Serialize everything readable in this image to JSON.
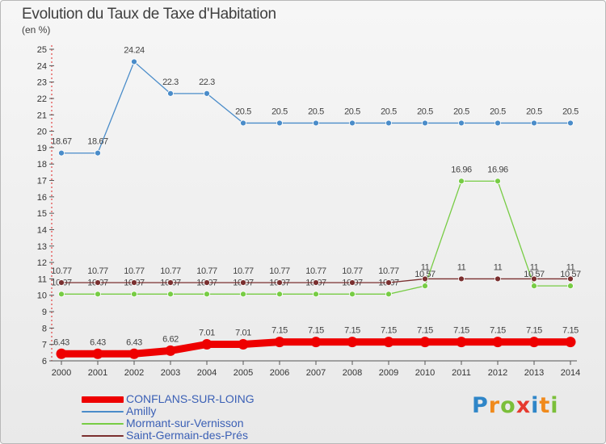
{
  "chart_data": {
    "type": "line",
    "title": "Evolution du Taux de Taxe d'Habitation",
    "subtitle": "(en %)",
    "x": [
      2000,
      2001,
      2002,
      2003,
      2004,
      2005,
      2006,
      2007,
      2008,
      2009,
      2010,
      2011,
      2012,
      2013,
      2014
    ],
    "ylim": [
      6,
      25
    ],
    "yticks": [
      6,
      7,
      8,
      9,
      10,
      11,
      12,
      13,
      14,
      15,
      16,
      17,
      18,
      19,
      20,
      21,
      22,
      23,
      24,
      25
    ],
    "grid": false,
    "legend": "bottom-left",
    "series": [
      {
        "name": "CONFLANS-SUR-LOING",
        "color": "#ee0000",
        "values": [
          6.43,
          6.43,
          6.43,
          6.62,
          7.01,
          7.01,
          7.15,
          7.15,
          7.15,
          7.15,
          7.15,
          7.15,
          7.15,
          7.15,
          7.15
        ],
        "labels": [
          "6.43",
          "6.43",
          "6.43",
          "6.62",
          "7.01",
          "7.01",
          "7.15",
          "7.15",
          "7.15",
          "7.15",
          "7.15",
          "7.15",
          "7.15",
          "7.15",
          "7.15"
        ]
      },
      {
        "name": "Amilly",
        "color": "#4a8cc9",
        "values": [
          18.67,
          18.67,
          24.24,
          22.3,
          22.3,
          20.5,
          20.5,
          20.5,
          20.5,
          20.5,
          20.5,
          20.5,
          20.5,
          20.5,
          20.5
        ],
        "labels": [
          "18.67",
          "18.67",
          "24.24",
          "22.3",
          "22.3",
          "20.5",
          "20.5",
          "20.5",
          "20.5",
          "20.5",
          "20.5",
          "20.5",
          "20.5",
          "20.5",
          "20.5"
        ]
      },
      {
        "name": "Mormant-sur-Vernisson",
        "color": "#77cc44",
        "values": [
          10.07,
          10.07,
          10.07,
          10.07,
          10.07,
          10.07,
          10.07,
          10.07,
          10.07,
          10.07,
          10.57,
          16.96,
          16.96,
          10.57,
          10.57
        ],
        "labels": [
          "10.07",
          "10.07",
          "10.07",
          "10.07",
          "10.07",
          "10.07",
          "10.07",
          "10.07",
          "10.07",
          "10.07",
          "10.57",
          "16.96",
          "16.96",
          "10.57",
          "10.57"
        ]
      },
      {
        "name": "Saint-Germain-des-Prés",
        "color": "#7a2f2f",
        "values": [
          10.77,
          10.77,
          10.77,
          10.77,
          10.77,
          10.77,
          10.77,
          10.77,
          10.77,
          10.77,
          11,
          11,
          11,
          11,
          11
        ],
        "labels": [
          "10.77",
          "10.77",
          "10.77",
          "10.77",
          "10.77",
          "10.77",
          "10.77",
          "10.77",
          "10.77",
          "10.77",
          "11",
          "11",
          "11",
          "11",
          "11"
        ]
      }
    ]
  },
  "logo": {
    "letters": [
      "P",
      "r",
      "o",
      "x",
      "i",
      "t",
      "i"
    ],
    "colors": [
      "#2f86c8",
      "#f08a1c",
      "#7bbf3a",
      "#e63a2e",
      "#2f86c8",
      "#f08a1c",
      "#7bbf3a"
    ]
  }
}
